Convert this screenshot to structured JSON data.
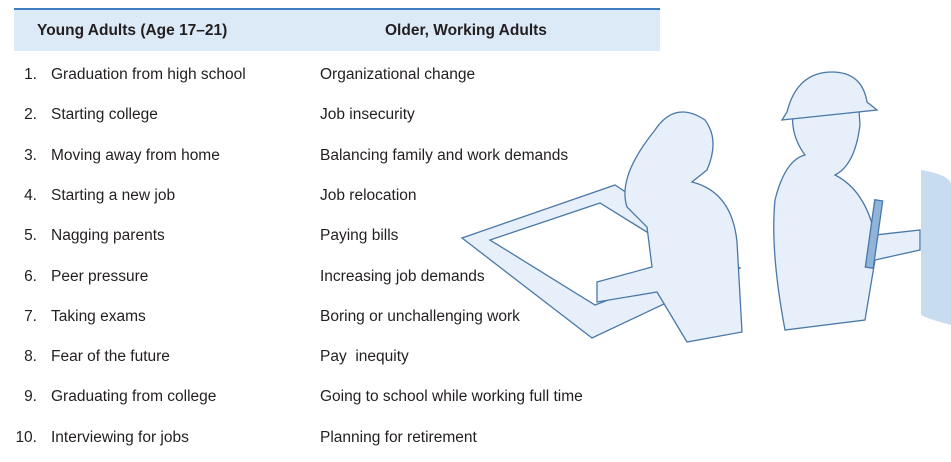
{
  "table": {
    "header": [
      "Young Adults (Age 17–21)",
      "Older, Working Adults"
    ],
    "rows": [
      {
        "number": "1.",
        "young": "Graduation from high school",
        "older": "Organizational change"
      },
      {
        "number": "2.",
        "young": "Starting college",
        "older": "Job insecurity"
      },
      {
        "number": "3.",
        "young": "Moving away from home",
        "older": "Balancing family and work demands"
      },
      {
        "number": "4.",
        "young": "Starting a new job",
        "older": "Job relocation"
      },
      {
        "number": "5.",
        "young": "Nagging parents",
        "older": "Paying bills"
      },
      {
        "number": "6.",
        "young": "Peer pressure",
        "older": "Increasing job demands"
      },
      {
        "number": "7.",
        "young": "Taking exams",
        "older": "Boring or unchallenging work"
      },
      {
        "number": "8.",
        "young": "Fear of the future",
        "older": "Pay  inequity"
      },
      {
        "number": "9.",
        "young": "Graduating from college",
        "older": "Going to school while working full time"
      },
      {
        "number": "10.",
        "young": "Interviewing for jobs",
        "older": "Planning for retirement"
      }
    ]
  }
}
